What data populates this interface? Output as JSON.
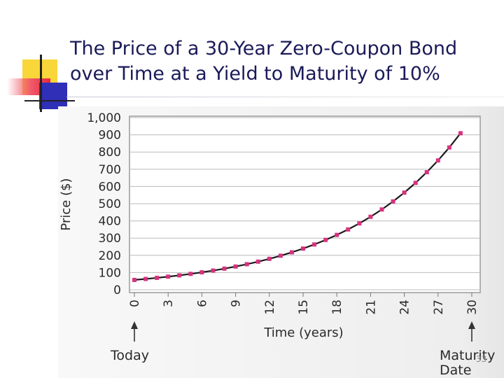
{
  "slide": {
    "title_lines": [
      "The Price of a 30-Year Zero-Coupon Bond",
      "over Time at a Yield to Maturity of 10%"
    ],
    "page_number": "33"
  },
  "chart_data": {
    "type": "line",
    "title": "The Price of a 30-Year Zero-Coupon Bond over Time at a Yield to Maturity of 10%",
    "xlabel": "Time (years)",
    "ylabel": "Price ($)",
    "xlim": [
      0,
      30
    ],
    "ylim": [
      0,
      1000
    ],
    "x_ticks": [
      0,
      3,
      6,
      9,
      12,
      15,
      18,
      21,
      24,
      27,
      30
    ],
    "y_ticks": [
      0,
      100,
      200,
      300,
      400,
      500,
      600,
      700,
      800,
      900,
      1000
    ],
    "y_tick_labels": [
      "0",
      "100",
      "200",
      "300",
      "400",
      "500",
      "600",
      "700",
      "800",
      "900",
      "1,000"
    ],
    "grid": "horizontal",
    "annotations": [
      {
        "text": "Today",
        "x": 0
      },
      {
        "text": "Maturity Date",
        "x": 30
      }
    ],
    "series": [
      {
        "x": [
          0,
          1,
          2,
          3,
          4,
          5,
          6,
          7,
          8,
          9,
          10,
          11,
          12,
          13,
          14,
          15,
          16,
          17,
          18,
          19,
          20,
          21,
          22,
          23,
          24,
          25,
          26,
          27,
          28,
          29
        ],
        "values": [
          57.31,
          63.04,
          69.34,
          76.28,
          83.91,
          92.3,
          101.53,
          111.68,
          122.85,
          135.13,
          148.64,
          163.51,
          179.86,
          197.84,
          217.63,
          239.39,
          263.33,
          289.66,
          318.63,
          350.49,
          385.54,
          424.1,
          466.51,
          513.16,
          564.47,
          620.92,
          683.01,
          751.31,
          826.45,
          909.09
        ]
      }
    ],
    "colors": {
      "line": "#1a1a1a",
      "markers": "#d6337f",
      "grid": "#bbbbbb",
      "plot_bg": "#ffffff"
    }
  }
}
